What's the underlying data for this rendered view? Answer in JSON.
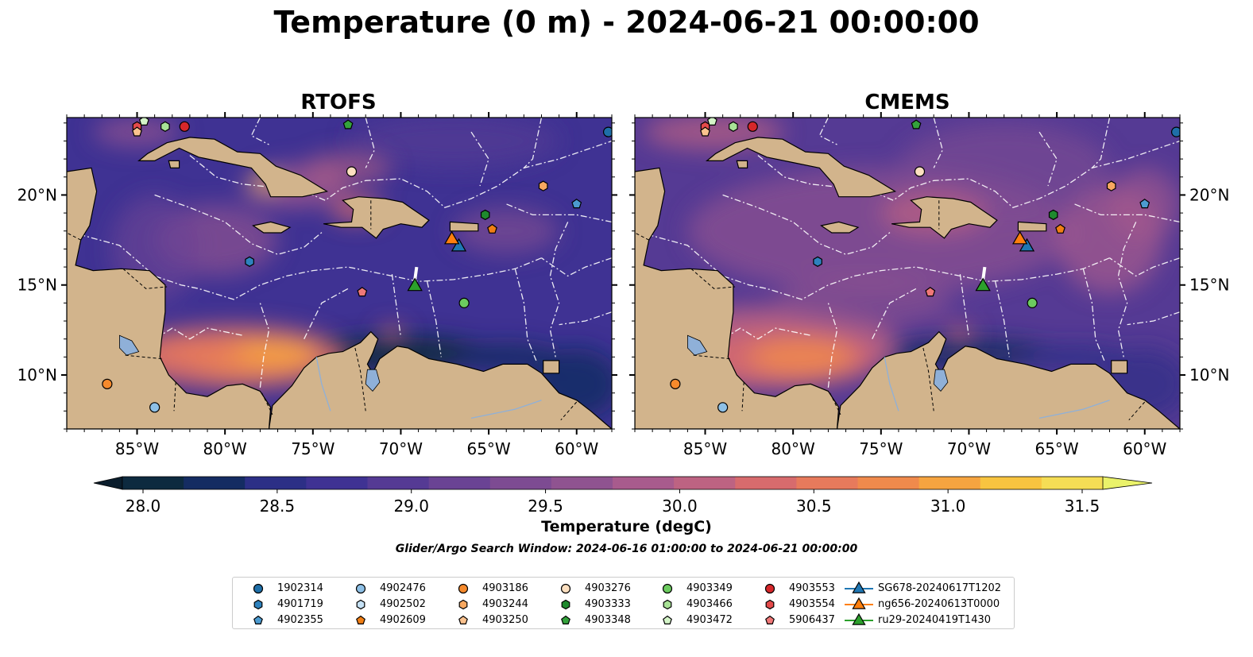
{
  "title": "Temperature (0 m) - 2024-06-21 00:00:00",
  "panels": [
    {
      "title": "RTOFS",
      "model": "rtofs"
    },
    {
      "title": "CMEMS",
      "model": "cmems"
    }
  ],
  "map": {
    "lon_range": [
      -89,
      -58
    ],
    "lat_range": [
      7,
      24.3
    ],
    "lon_ticks": [
      "85°W",
      "80°W",
      "75°W",
      "70°W",
      "65°W",
      "60°W"
    ],
    "lon_tick_values": [
      -85,
      -80,
      -75,
      -70,
      -65,
      -60
    ],
    "lat_ticks": [
      "20°N",
      "15°N",
      "10°N"
    ],
    "lat_tick_values": [
      20,
      15,
      10
    ],
    "colors": {
      "land": "#d2b48c",
      "lake": "#8fb0d8",
      "deep_water": "#1e2a55",
      "eez_lines": "#ffffff"
    }
  },
  "colorbar": {
    "label": "Temperature (degC)",
    "min": 28.0,
    "max": 31.5,
    "step": 0.25,
    "tick_labels": [
      "28.0",
      "28.5",
      "29.0",
      "29.5",
      "30.0",
      "30.5",
      "31.0",
      "31.5"
    ],
    "tick_values": [
      28.0,
      28.5,
      29.0,
      29.5,
      30.0,
      30.5,
      31.0,
      31.5
    ],
    "colors": [
      "#0d2a3f",
      "#142c62",
      "#2c2f86",
      "#3f3293",
      "#553a94",
      "#6a4394",
      "#7d4b92",
      "#8f5390",
      "#a85b8d",
      "#bd6382",
      "#d76b6d",
      "#e77a5c",
      "#f08a4c",
      "#f6a440",
      "#f8c440",
      "#f5dd55"
    ],
    "extend_low": "#0a1d2c",
    "extend_high": "#eaf26a"
  },
  "search_window": "Glider/Argo Search Window: 2024-06-16 01:00:00 to 2024-06-21 00:00:00",
  "legend": {
    "items": [
      {
        "label": "1902314",
        "marker": "circle",
        "color": "#1f6fa8"
      },
      {
        "label": "4901719",
        "marker": "hexagon",
        "color": "#2e82be"
      },
      {
        "label": "4902355",
        "marker": "pentagon",
        "color": "#4c9bd0"
      },
      {
        "label": "4902476",
        "marker": "circle",
        "color": "#8ec0e6"
      },
      {
        "label": "4902502",
        "marker": "hexagon",
        "color": "#c6e2f6"
      },
      {
        "label": "4902609",
        "marker": "pentagon",
        "color": "#f07e14"
      },
      {
        "label": "4903186",
        "marker": "circle",
        "color": "#f68a2c"
      },
      {
        "label": "4903244",
        "marker": "hexagon",
        "color": "#f8a860"
      },
      {
        "label": "4903250",
        "marker": "pentagon",
        "color": "#fbc28e"
      },
      {
        "label": "4903276",
        "marker": "circle",
        "color": "#fde0c0"
      },
      {
        "label": "4903333",
        "marker": "hexagon",
        "color": "#1f8a2e"
      },
      {
        "label": "4903348",
        "marker": "pentagon",
        "color": "#34a23c"
      },
      {
        "label": "4903349",
        "marker": "circle",
        "color": "#6ccb5f"
      },
      {
        "label": "4903466",
        "marker": "hexagon",
        "color": "#a8e296"
      },
      {
        "label": "4903472",
        "marker": "pentagon",
        "color": "#d4f4c8"
      },
      {
        "label": "4903553",
        "marker": "circle",
        "color": "#d6272a"
      },
      {
        "label": "4903554",
        "marker": "hexagon",
        "color": "#e44a4a"
      },
      {
        "label": "5906437",
        "marker": "pentagon",
        "color": "#f07878"
      },
      {
        "label": "SG678-20240617T1202",
        "marker": "triangle",
        "color": "#1f77b4"
      },
      {
        "label": "ng656-20240613T0000",
        "marker": "triangle",
        "color": "#ff7f0e"
      },
      {
        "label": "ru29-20240419T1430",
        "marker": "triangle",
        "color": "#2ca02c"
      }
    ]
  },
  "observations": [
    {
      "id": "1902314",
      "lon": -58.2,
      "lat": 23.5
    },
    {
      "id": "4902355",
      "lon": -60.0,
      "lat": 19.5
    },
    {
      "id": "4903244",
      "lon": -61.9,
      "lat": 20.5
    },
    {
      "id": "4902609",
      "lon": -64.8,
      "lat": 18.1
    },
    {
      "id": "4903333",
      "lon": -65.2,
      "lat": 18.9
    },
    {
      "id": "4903348",
      "lon": -73.0,
      "lat": 23.9
    },
    {
      "id": "4903276",
      "lon": -72.8,
      "lat": 21.3
    },
    {
      "id": "4903553",
      "lon": -82.3,
      "lat": 23.8
    },
    {
      "id": "4903554",
      "lon": -85.0,
      "lat": 23.8
    },
    {
      "id": "4903250",
      "lon": -85.0,
      "lat": 23.5
    },
    {
      "id": "4903472",
      "lon": -84.6,
      "lat": 24.1
    },
    {
      "id": "4903466",
      "lon": -83.4,
      "lat": 23.8
    },
    {
      "id": "4901719",
      "lon": -78.6,
      "lat": 16.3
    },
    {
      "id": "5906437",
      "lon": -72.2,
      "lat": 14.6
    },
    {
      "id": "4903349",
      "lon": -66.4,
      "lat": 14.0
    },
    {
      "id": "4903186",
      "lon": -86.7,
      "lat": 9.5
    },
    {
      "id": "4902476",
      "lon": -84.0,
      "lat": 8.2
    },
    {
      "id": "SG678-20240617T1202",
      "lon": -66.7,
      "lat": 17.2
    },
    {
      "id": "ng656-20240613T0000",
      "lon": -67.1,
      "lat": 17.6
    },
    {
      "id": "ru29-20240419T1430",
      "lon": -69.2,
      "lat": 15.0
    }
  ]
}
